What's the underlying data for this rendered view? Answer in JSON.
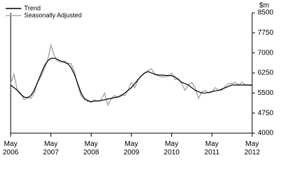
{
  "chart_data": {
    "type": "line",
    "y_unit": "$m",
    "categories": [
      "May 2006",
      null,
      null,
      null,
      null,
      null,
      null,
      null,
      null,
      null,
      null,
      null,
      "May 2007",
      null,
      null,
      null,
      null,
      null,
      null,
      null,
      null,
      null,
      null,
      null,
      "May 2008",
      null,
      null,
      null,
      null,
      null,
      null,
      null,
      null,
      null,
      null,
      null,
      "May 2009",
      null,
      null,
      null,
      null,
      null,
      null,
      null,
      null,
      null,
      null,
      null,
      "May 2010",
      null,
      null,
      null,
      null,
      null,
      null,
      null,
      null,
      null,
      null,
      null,
      "May 2011",
      null,
      null,
      null,
      null,
      null,
      null,
      null,
      null,
      null,
      null,
      null,
      "May 2012"
    ],
    "series": [
      {
        "name": "Trend",
        "color": "#000000",
        "values": [
          5800,
          5700,
          5600,
          5450,
          5350,
          5320,
          5400,
          5600,
          5900,
          6200,
          6500,
          6700,
          6800,
          6800,
          6750,
          6700,
          6650,
          6600,
          6450,
          6200,
          5850,
          5500,
          5300,
          5200,
          5180,
          5200,
          5200,
          5220,
          5250,
          5280,
          5300,
          5330,
          5350,
          5400,
          5500,
          5600,
          5700,
          5850,
          6000,
          6150,
          6250,
          6300,
          6250,
          6200,
          6170,
          6170,
          6160,
          6150,
          6150,
          6100,
          6000,
          5900,
          5850,
          5800,
          5700,
          5600,
          5550,
          5500,
          5500,
          5520,
          5550,
          5580,
          5600,
          5650,
          5700,
          5750,
          5800,
          5800,
          5800,
          5800,
          5800,
          5800,
          5800
        ]
      },
      {
        "name": "Seasonally Adjusted",
        "color": "#aaaaaa",
        "values": [
          5850,
          6200,
          5600,
          5500,
          5250,
          5350,
          5300,
          5500,
          5900,
          6100,
          6400,
          6700,
          7300,
          6900,
          6700,
          6650,
          6700,
          6600,
          6600,
          6300,
          5800,
          5400,
          5250,
          5250,
          5150,
          5250,
          5200,
          5250,
          5500,
          5050,
          5300,
          5400,
          5350,
          5450,
          5400,
          5600,
          5900,
          5700,
          6000,
          6150,
          6250,
          6350,
          6400,
          6200,
          6150,
          6100,
          6100,
          6150,
          6250,
          6000,
          6050,
          5850,
          5600,
          5800,
          5900,
          5700,
          5300,
          5550,
          5600,
          5500,
          5550,
          5700,
          5600,
          5600,
          5750,
          5850,
          5850,
          5900,
          5800,
          5900,
          5800,
          5800,
          5750
        ]
      }
    ],
    "ylim": [
      4000,
      8500
    ],
    "yticks": [
      4000,
      4750,
      5500,
      6250,
      7000,
      7750,
      8500
    ],
    "legend": "top-left"
  }
}
